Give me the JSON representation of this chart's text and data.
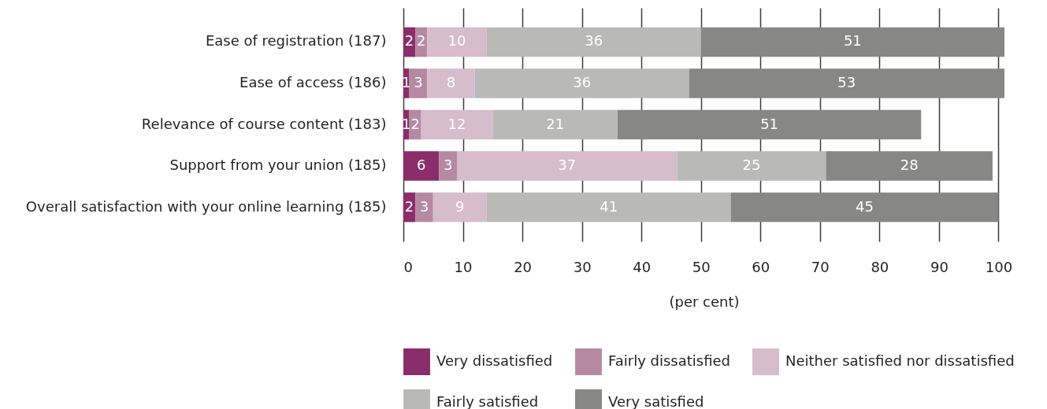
{
  "chart_data": {
    "type": "bar",
    "orientation": "horizontal",
    "stacked": true,
    "categories": [
      "Ease of registration (187)",
      "Ease of access (186)",
      "Relevance of course content (183)",
      "Support from your union (185)",
      "Overall satisfaction with your online learning (185)"
    ],
    "series": [
      {
        "name": "Very dissatisfied",
        "color": "#8b2d6b",
        "values": [
          2,
          1,
          1,
          6,
          2
        ]
      },
      {
        "name": "Fairly dissatisfied",
        "color": "#b689a3",
        "values": [
          2,
          3,
          2,
          3,
          3
        ]
      },
      {
        "name": "Neither satisfied nor dissatisfied",
        "color": "#d7bccb",
        "values": [
          10,
          8,
          12,
          37,
          9
        ]
      },
      {
        "name": "Fairly satisfied",
        "color": "#b9b9b7",
        "values": [
          36,
          36,
          21,
          25,
          41
        ]
      },
      {
        "name": "Very satisfied",
        "color": "#878786",
        "values": [
          51,
          53,
          51,
          28,
          45
        ]
      }
    ],
    "xlabel": "(per cent)",
    "xlim": [
      0,
      101
    ],
    "xticks": [
      0,
      10,
      20,
      30,
      40,
      50,
      60,
      70,
      80,
      90,
      100
    ],
    "grid": "x",
    "legend": "bottom",
    "data_labels": true
  }
}
